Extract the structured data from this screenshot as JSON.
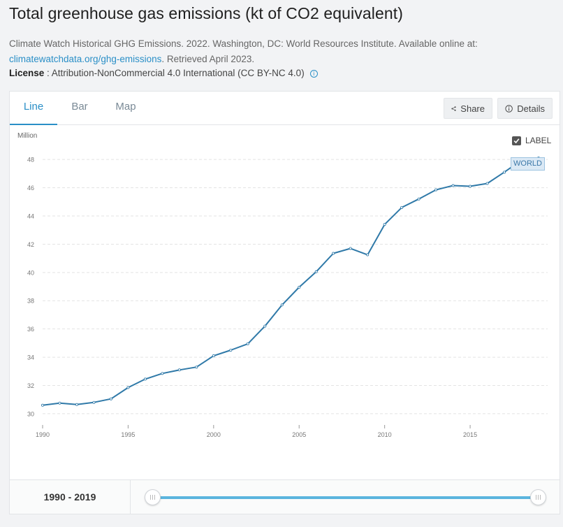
{
  "title": "Total greenhouse gas emissions (kt of CO2 equivalent)",
  "source": {
    "text_before": "Climate Watch Historical GHG Emissions. 2022. Washington, DC: World Resources Institute. Available online at: ",
    "link": "climatewatchdata.org/ghg-emissions",
    "text_after": ". Retrieved April 2023."
  },
  "license": {
    "label": "License",
    "text": " : Attribution-NonCommercial 4.0 International (CC BY-NC 4.0)",
    "icon": "info-icon"
  },
  "tabs": [
    {
      "label": "Line",
      "active": true
    },
    {
      "label": "Bar",
      "active": false
    },
    {
      "label": "Map",
      "active": false
    }
  ],
  "toolbar": {
    "share_label": "Share",
    "details_label": "Details"
  },
  "label_toggle": {
    "label": "LABEL",
    "checked": true
  },
  "range": {
    "start": "1990",
    "separator": " - ",
    "end": "2019"
  },
  "colors": {
    "line": "#2f79a8",
    "accent": "#2a8fc7",
    "slider": "#5bb5de"
  },
  "chart_data": {
    "type": "line",
    "unit_label": "Million",
    "series": [
      {
        "name": "WORLD",
        "x": [
          1990,
          1991,
          1992,
          1993,
          1994,
          1995,
          1996,
          1997,
          1998,
          1999,
          2000,
          2001,
          2002,
          2003,
          2004,
          2005,
          2006,
          2007,
          2008,
          2009,
          2010,
          2011,
          2012,
          2013,
          2014,
          2015,
          2016,
          2017,
          2018,
          2019
        ],
        "values": [
          30.6,
          30.75,
          30.65,
          30.8,
          31.05,
          31.85,
          32.45,
          32.85,
          33.1,
          33.3,
          34.1,
          34.5,
          34.95,
          36.2,
          37.7,
          38.95,
          40.05,
          41.35,
          41.7,
          41.25,
          43.4,
          44.6,
          45.2,
          45.85,
          46.15,
          46.1,
          46.3,
          47.1,
          47.95,
          48.1
        ]
      }
    ],
    "xticks": [
      1990,
      1995,
      2000,
      2005,
      2010,
      2015
    ],
    "yticks": [
      30,
      32,
      34,
      36,
      38,
      40,
      42,
      44,
      46,
      48
    ],
    "xlim": [
      1990,
      2019
    ],
    "ylim": [
      29.6,
      48.7
    ],
    "grid": true,
    "legend": "none"
  }
}
